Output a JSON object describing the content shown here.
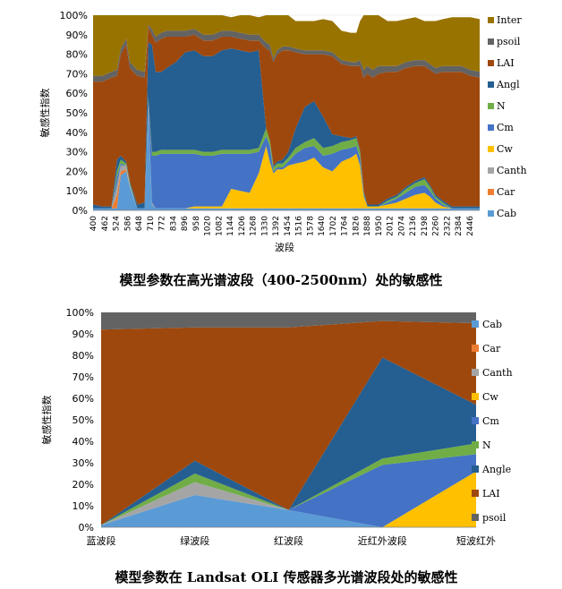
{
  "chart_data": [
    {
      "type": "area",
      "stacked": "percent",
      "title": "模型参数在高光谱波段（400-2500nm）处的敏感性",
      "xlabel": "波段",
      "ylabel": "敏感性指数",
      "ylim": [
        0,
        100
      ],
      "yticks": [
        "0%",
        "10%",
        "20%",
        "30%",
        "40%",
        "50%",
        "60%",
        "70%",
        "80%",
        "90%",
        "100%"
      ],
      "xrange": [
        400,
        2500
      ],
      "xticks": [
        "400",
        "462",
        "524",
        "586",
        "648",
        "710",
        "772",
        "834",
        "896",
        "958",
        "1020",
        "1082",
        "1144",
        "1206",
        "1268",
        "1330",
        "1392",
        "1454",
        "1516",
        "1578",
        "1640",
        "1702",
        "1764",
        "1826",
        "1888",
        "1950",
        "2012",
        "2074",
        "2136",
        "2198",
        "2260",
        "2322",
        "2384",
        "2446"
      ],
      "legend_position": "right",
      "x": [
        400,
        450,
        500,
        530,
        550,
        580,
        600,
        640,
        680,
        700,
        720,
        740,
        770,
        800,
        850,
        900,
        950,
        1000,
        1050,
        1100,
        1150,
        1200,
        1250,
        1300,
        1340,
        1360,
        1380,
        1400,
        1430,
        1460,
        1500,
        1550,
        1600,
        1650,
        1700,
        1750,
        1800,
        1830,
        1850,
        1870,
        1890,
        1920,
        1950,
        2000,
        2050,
        2100,
        2150,
        2200,
        2230,
        2260,
        2300,
        2350,
        2400,
        2450,
        2500
      ],
      "series": [
        {
          "name": "Cab",
          "values": [
            1,
            1,
            1,
            1,
            18,
            20,
            12,
            1,
            1,
            52,
            3,
            1,
            1,
            1,
            1,
            1,
            1,
            1,
            1,
            1,
            1,
            1,
            1,
            1,
            1,
            1,
            1,
            1,
            1,
            1,
            1,
            1,
            1,
            1,
            1,
            1,
            1,
            1,
            1,
            1,
            1,
            1,
            1,
            1,
            1,
            1,
            1,
            1,
            1,
            1,
            1,
            1,
            1,
            1,
            1
          ]
        },
        {
          "name": "Car",
          "values": [
            0,
            0,
            0,
            7,
            2,
            1,
            0,
            0,
            0,
            0,
            0,
            0,
            0,
            0,
            0,
            0,
            0,
            0,
            0,
            0,
            0,
            0,
            0,
            0,
            0,
            0,
            0,
            0,
            0,
            0,
            0,
            0,
            0,
            0,
            0,
            0,
            0,
            0,
            0,
            0,
            0,
            0,
            0,
            0,
            0,
            0,
            0,
            0,
            0,
            0,
            0,
            0,
            0,
            0,
            0
          ]
        },
        {
          "name": "Canth",
          "values": [
            0,
            0,
            0,
            5,
            3,
            2,
            1,
            0,
            0,
            2,
            1,
            0,
            0,
            0,
            0,
            0,
            0,
            0,
            0,
            0,
            0,
            0,
            0,
            0,
            0,
            0,
            0,
            0,
            0,
            0,
            0,
            0,
            0,
            0,
            0,
            0,
            0,
            0,
            0,
            0,
            0,
            0,
            0,
            0,
            0,
            0,
            0,
            0,
            0,
            0,
            0,
            0,
            0,
            0,
            0
          ]
        },
        {
          "name": "Cw",
          "values": [
            0,
            0,
            0,
            0,
            0,
            0,
            0,
            0,
            0,
            0,
            0,
            0,
            0,
            0,
            0,
            0,
            1,
            1,
            1,
            1,
            10,
            9,
            8,
            18,
            32,
            24,
            18,
            20,
            20,
            22,
            23,
            24,
            26,
            21,
            19,
            24,
            26,
            28,
            22,
            6,
            1,
            1,
            1,
            2,
            3,
            5,
            7,
            8,
            6,
            3,
            1,
            0,
            0,
            0,
            0
          ]
        },
        {
          "name": "Cm",
          "values": [
            0,
            0,
            0,
            4,
            1,
            0,
            0,
            0,
            0,
            2,
            24,
            27,
            28,
            28,
            28,
            28,
            27,
            26,
            26,
            27,
            18,
            19,
            20,
            11,
            5,
            8,
            1,
            1,
            1,
            2,
            5,
            7,
            6,
            6,
            9,
            6,
            5,
            4,
            4,
            1,
            0,
            0,
            0,
            1,
            2,
            3,
            4,
            4,
            3,
            2,
            1,
            0,
            0,
            0,
            0
          ]
        },
        {
          "name": "N",
          "values": [
            0,
            0,
            0,
            3,
            2,
            1,
            1,
            0,
            0,
            2,
            2,
            2,
            2,
            2,
            2,
            2,
            2,
            2,
            2,
            2,
            2,
            2,
            2,
            2,
            4,
            3,
            2,
            2,
            2,
            2,
            3,
            3,
            4,
            4,
            4,
            4,
            4,
            4,
            3,
            1,
            0,
            0,
            0,
            1,
            1,
            2,
            2,
            3,
            2,
            1,
            1,
            0,
            0,
            0,
            0
          ]
        },
        {
          "name": "Angl",
          "values": [
            2,
            1,
            1,
            6,
            2,
            1,
            1,
            2,
            3,
            28,
            55,
            41,
            40,
            42,
            45,
            50,
            51,
            49,
            49,
            51,
            52,
            51,
            50,
            50,
            0,
            0,
            1,
            1,
            2,
            3,
            10,
            18,
            19,
            16,
            6,
            3,
            1,
            1,
            1,
            1,
            1,
            1,
            1,
            1,
            1,
            1,
            1,
            1,
            1,
            1,
            1,
            1,
            1,
            1,
            1
          ]
        },
        {
          "name": "LAI",
          "values": [
            63,
            64,
            66,
            43,
            52,
            60,
            58,
            66,
            64,
            8,
            5,
            15,
            17,
            16,
            13,
            8,
            8,
            8,
            8,
            7,
            6,
            6,
            6,
            5,
            41,
            46,
            53,
            55,
            56,
            52,
            39,
            27,
            24,
            32,
            40,
            37,
            37,
            36,
            43,
            58,
            67,
            65,
            67,
            65,
            63,
            61,
            59,
            57,
            59,
            62,
            66,
            69,
            69,
            67,
            66
          ]
        },
        {
          "name": "psoil",
          "values": [
            3,
            3,
            3,
            3,
            3,
            3,
            3,
            3,
            3,
            1,
            3,
            3,
            3,
            3,
            3,
            3,
            3,
            3,
            3,
            3,
            3,
            3,
            3,
            3,
            3,
            3,
            2,
            2,
            2,
            2,
            2,
            2,
            2,
            2,
            2,
            2,
            2,
            2,
            3,
            4,
            4,
            4,
            4,
            3,
            3,
            3,
            3,
            3,
            3,
            3,
            3,
            3,
            3,
            3,
            3
          ]
        },
        {
          "name": "Inter",
          "values": [
            31,
            31,
            29,
            28,
            19,
            12,
            24,
            28,
            29,
            5,
            7,
            11,
            9,
            8,
            8,
            8,
            7,
            10,
            10,
            8,
            7,
            9,
            10,
            9,
            14,
            15,
            22,
            18,
            16,
            16,
            14,
            15,
            15,
            16,
            16,
            15,
            15,
            15,
            20,
            28,
            26,
            28,
            26,
            23,
            23,
            22,
            22,
            20,
            22,
            24,
            24,
            25,
            25,
            27,
            27
          ]
        }
      ],
      "legend": [
        "Inter",
        "psoil",
        "LAI",
        "Angl",
        "N",
        "Cm",
        "Cw",
        "Canth",
        "Car",
        "Cab"
      ]
    },
    {
      "type": "area",
      "stacked": "percent",
      "title": "模型参数在 Landsat OLI 传感器多光谱波段处的敏感性",
      "xlabel": "",
      "ylabel": "敏感性指数",
      "ylim": [
        0,
        100
      ],
      "yticks": [
        "0%",
        "10%",
        "20%",
        "30%",
        "40%",
        "50%",
        "60%",
        "70%",
        "80%",
        "90%",
        "100%"
      ],
      "categories": [
        "蓝波段",
        "绿波段",
        "红波段",
        "近红外波段",
        "短波红外"
      ],
      "legend_position": "right",
      "series": [
        {
          "name": "Cab",
          "values": [
            1,
            15,
            8,
            0,
            0
          ]
        },
        {
          "name": "Car",
          "values": [
            0,
            0,
            0,
            0,
            0
          ]
        },
        {
          "name": "Canth",
          "values": [
            0,
            6,
            0,
            0,
            0
          ]
        },
        {
          "name": "Cw",
          "values": [
            0,
            0,
            0,
            0,
            26
          ]
        },
        {
          "name": "Cm",
          "values": [
            0,
            0,
            0,
            29,
            8
          ]
        },
        {
          "name": "N",
          "values": [
            0,
            4,
            0,
            3,
            5
          ]
        },
        {
          "name": "Angle",
          "values": [
            0,
            6,
            0,
            47,
            18
          ]
        },
        {
          "name": "LAI",
          "values": [
            91,
            62,
            85,
            17,
            38
          ]
        },
        {
          "name": "psoil",
          "values": [
            8,
            7,
            7,
            4,
            5
          ]
        }
      ],
      "legend": [
        "Cab",
        "Car",
        "Canth",
        "Cw",
        "Cm",
        "N",
        "Angle",
        "LAI",
        "psoil"
      ]
    }
  ],
  "colors": {
    "Cab": "#5b9bd5",
    "Car": "#ed7d31",
    "Canth": "#a5a5a5",
    "Cw": "#ffc000",
    "Cm": "#4472c4",
    "N": "#70ad47",
    "Angl": "#255e91",
    "Angle": "#255e91",
    "LAI": "#9e480e",
    "psoil": "#636363",
    "Inter": "#997300",
    "grid": "#d9d9d9",
    "axis": "#808080"
  }
}
